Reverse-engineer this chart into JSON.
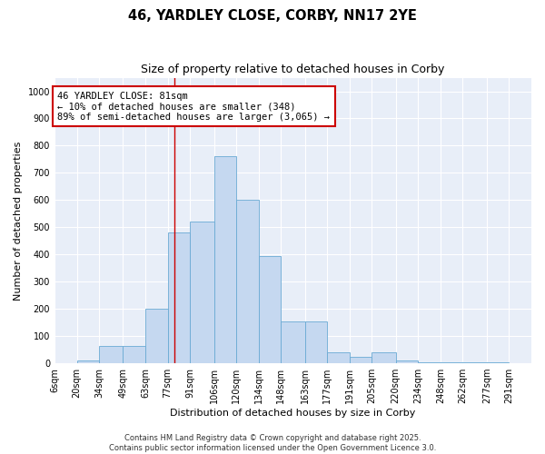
{
  "title1": "46, YARDLEY CLOSE, CORBY, NN17 2YE",
  "title2": "Size of property relative to detached houses in Corby",
  "xlabel": "Distribution of detached houses by size in Corby",
  "ylabel": "Number of detached properties",
  "bin_labels": [
    "6sqm",
    "20sqm",
    "34sqm",
    "49sqm",
    "63sqm",
    "77sqm",
    "91sqm",
    "106sqm",
    "120sqm",
    "134sqm",
    "148sqm",
    "163sqm",
    "177sqm",
    "191sqm",
    "205sqm",
    "220sqm",
    "234sqm",
    "248sqm",
    "262sqm",
    "277sqm",
    "291sqm"
  ],
  "bin_edges": [
    6,
    20,
    34,
    49,
    63,
    77,
    91,
    106,
    120,
    134,
    148,
    163,
    177,
    191,
    205,
    220,
    234,
    248,
    262,
    277,
    291
  ],
  "bar_heights": [
    0,
    10,
    65,
    65,
    200,
    480,
    520,
    760,
    600,
    395,
    155,
    155,
    40,
    25,
    40,
    10,
    5,
    5,
    5,
    5
  ],
  "bar_color": "#c5d8f0",
  "bar_edge_color": "#6aaad4",
  "property_size": 81,
  "vline_color": "#cc0000",
  "annotation_box_color": "#cc0000",
  "annotation_line1": "46 YARDLEY CLOSE: 81sqm",
  "annotation_line2": "← 10% of detached houses are smaller (348)",
  "annotation_line3": "89% of semi-detached houses are larger (3,065) →",
  "ylim": [
    0,
    1050
  ],
  "yticks": [
    0,
    100,
    200,
    300,
    400,
    500,
    600,
    700,
    800,
    900,
    1000
  ],
  "background_color": "#e8eef8",
  "grid_color": "#ffffff",
  "footer_text": "Contains HM Land Registry data © Crown copyright and database right 2025.\nContains public sector information licensed under the Open Government Licence 3.0.",
  "title1_fontsize": 10.5,
  "title2_fontsize": 9,
  "ylabel_fontsize": 8,
  "xlabel_fontsize": 8,
  "tick_fontsize": 7,
  "annotation_fontsize": 7.5,
  "footer_fontsize": 6
}
